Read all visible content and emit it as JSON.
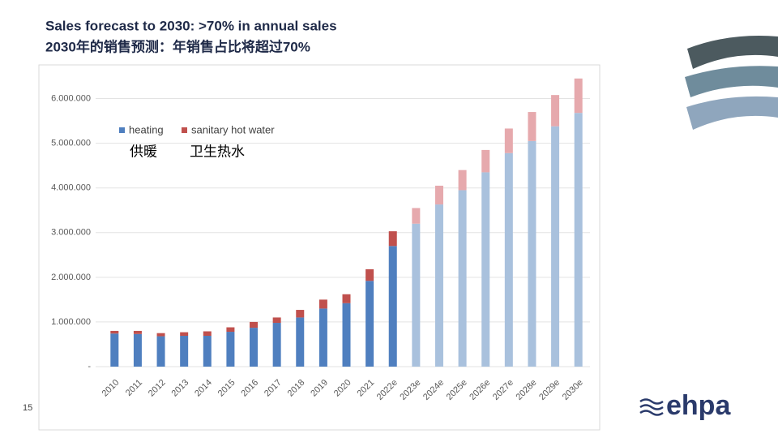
{
  "chart_data": {
    "type": "stacked_bar",
    "title": "Sales forecast to 2030: >70% in annual sales",
    "subtitle": "2030年的销售预测：年销售占比将超过70%",
    "page_number": "15",
    "logo": "ehpa",
    "legend_translations": [
      "供暖",
      "卫生热水"
    ],
    "categories": [
      "2010",
      "2011",
      "2012",
      "2013",
      "2014",
      "2015",
      "2016",
      "2017",
      "2018",
      "2019",
      "2020",
      "2021",
      "2022e",
      "2023e",
      "2024e",
      "2025e",
      "2026e",
      "2027e",
      "2028e",
      "2029e",
      "2030e"
    ],
    "forecast_from": "2023e",
    "series": [
      {
        "name": "heating",
        "color": "#4f7fbf",
        "forecast_color": "#a9c1dd",
        "values": [
          740000,
          730000,
          680000,
          690000,
          690000,
          780000,
          870000,
          980000,
          1100000,
          1300000,
          1420000,
          1920000,
          2700000,
          3200000,
          3630000,
          3950000,
          4350000,
          4780000,
          5050000,
          5380000,
          5680000
        ]
      },
      {
        "name": "sanitary hot water",
        "color": "#c0504d",
        "forecast_color": "#e6a9ad",
        "values": [
          60000,
          70000,
          70000,
          80000,
          100000,
          100000,
          130000,
          120000,
          170000,
          200000,
          200000,
          260000,
          330000,
          350000,
          420000,
          450000,
          500000,
          550000,
          650000,
          700000,
          770000
        ]
      }
    ],
    "ylim": [
      0,
      6700000
    ],
    "yticks": [
      {
        "value": 0,
        "label": "-"
      },
      {
        "value": 1000000,
        "label": "1.000.000"
      },
      {
        "value": 2000000,
        "label": "2.000.000"
      },
      {
        "value": 3000000,
        "label": "3.000.000"
      },
      {
        "value": 4000000,
        "label": "4.000.000"
      },
      {
        "value": 5000000,
        "label": "5.000.000"
      },
      {
        "value": 6000000,
        "label": "6.000.000"
      }
    ],
    "grid": true
  }
}
